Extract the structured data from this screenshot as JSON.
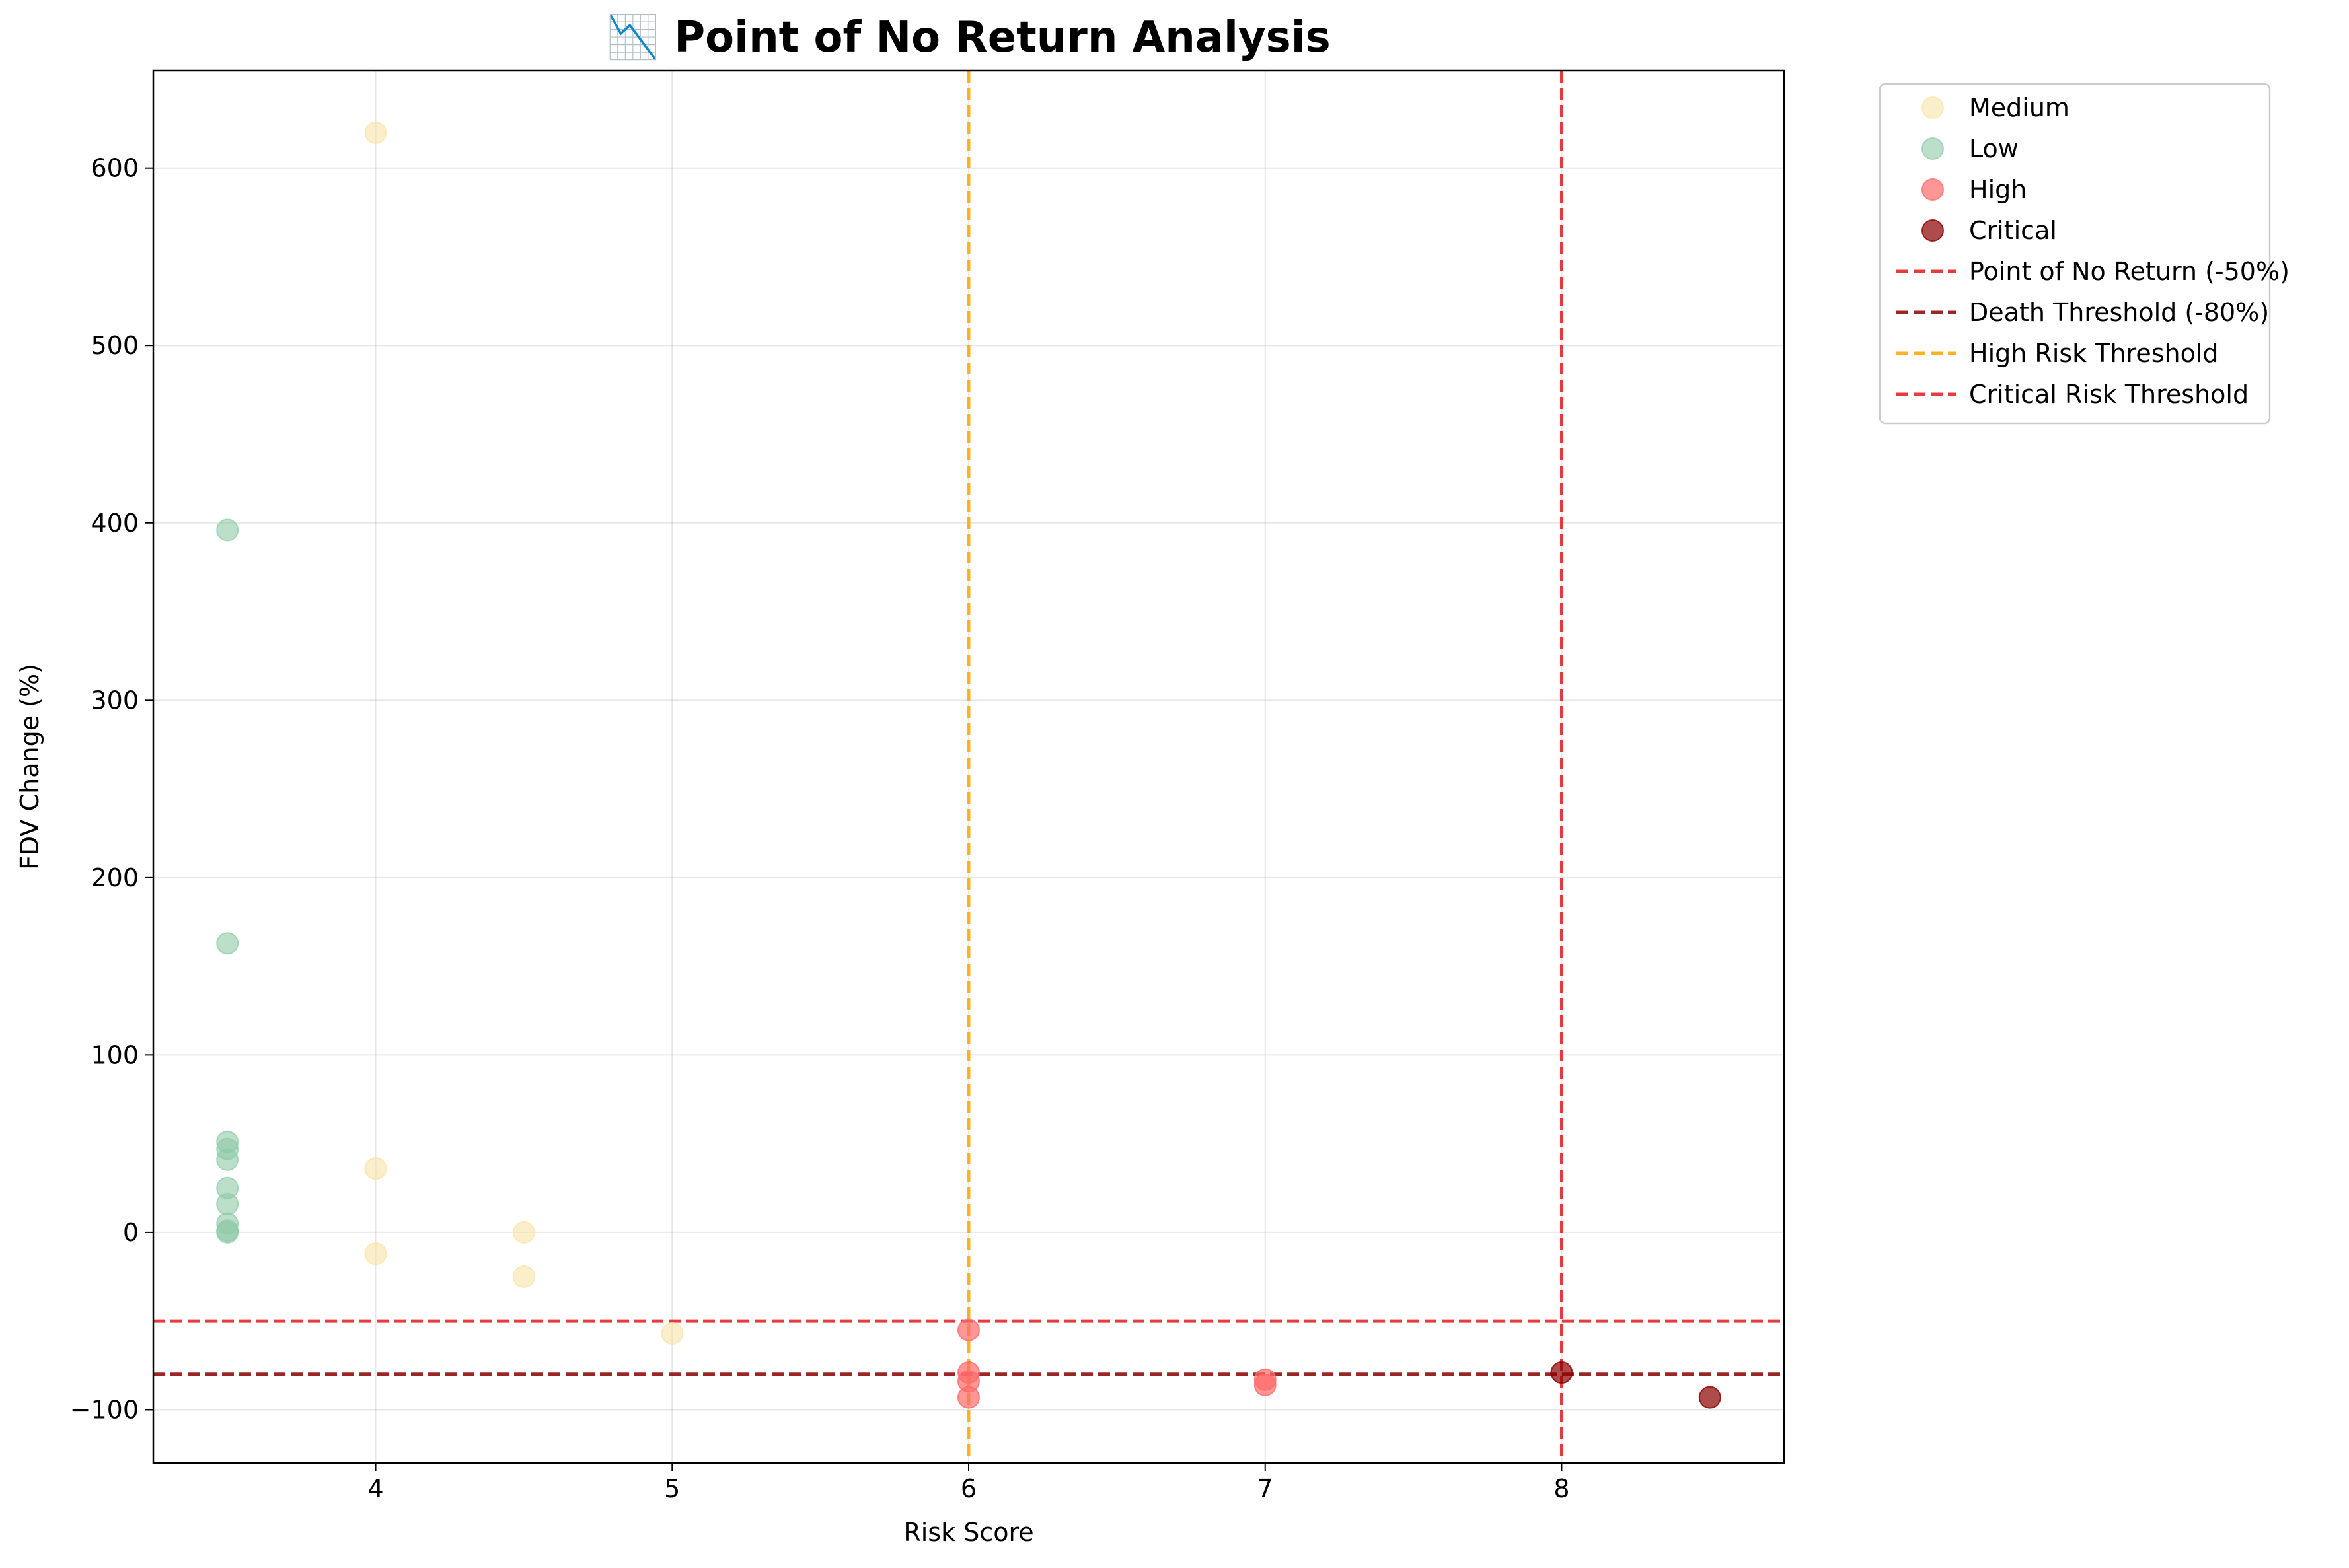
{
  "chart_data": {
    "type": "scatter",
    "title": "📉 Point of No Return Analysis",
    "xlabel": "Risk Score",
    "ylabel": "FDV Change (%)",
    "xlim": [
      3.25,
      8.75
    ],
    "ylim": [
      -130,
      655
    ],
    "xticks": [
      4,
      5,
      6,
      7,
      8
    ],
    "yticks": [
      -100,
      0,
      100,
      200,
      300,
      400,
      500,
      600
    ],
    "grid": true,
    "legend_position": "outside top-right",
    "series": [
      {
        "name": "Medium",
        "color": "#f9e3a6",
        "opacity": 0.6,
        "points": [
          [
            4,
            620
          ],
          [
            4,
            36
          ],
          [
            4,
            -12
          ],
          [
            4.5,
            0
          ],
          [
            4.5,
            -25
          ],
          [
            5,
            -57
          ]
        ]
      },
      {
        "name": "Low",
        "color": "#8fcaa6",
        "opacity": 0.6,
        "points": [
          [
            3.5,
            396
          ],
          [
            3.5,
            163
          ],
          [
            3.5,
            51
          ],
          [
            3.5,
            47
          ],
          [
            3.5,
            41
          ],
          [
            3.5,
            25
          ],
          [
            3.5,
            16
          ],
          [
            3.5,
            5
          ],
          [
            3.5,
            1
          ],
          [
            3.5,
            0
          ]
        ]
      },
      {
        "name": "High",
        "color": "#ff6b6b",
        "opacity": 0.7,
        "points": [
          [
            6,
            -55
          ],
          [
            6,
            -79
          ],
          [
            6,
            -84
          ],
          [
            6,
            -93
          ],
          [
            7,
            -83
          ],
          [
            7,
            -86
          ]
        ]
      },
      {
        "name": "Critical",
        "color": "#8b0000",
        "opacity": 0.7,
        "points": [
          [
            8,
            -79
          ],
          [
            8.5,
            -93
          ]
        ]
      }
    ],
    "reference_lines": [
      {
        "name": "Point of No Return (-50%)",
        "orientation": "horizontal",
        "value": -50,
        "color": "#e31a1c",
        "style": "dashed"
      },
      {
        "name": "Death Threshold (-80%)",
        "orientation": "horizontal",
        "value": -80,
        "color": "#8b0000",
        "style": "dashed"
      },
      {
        "name": "High Risk Threshold",
        "orientation": "vertical",
        "value": 6,
        "color": "#ffa500",
        "style": "dashed"
      },
      {
        "name": "Critical Risk Threshold",
        "orientation": "vertical",
        "value": 8,
        "color": "#e31a1c",
        "style": "dashed"
      }
    ]
  }
}
